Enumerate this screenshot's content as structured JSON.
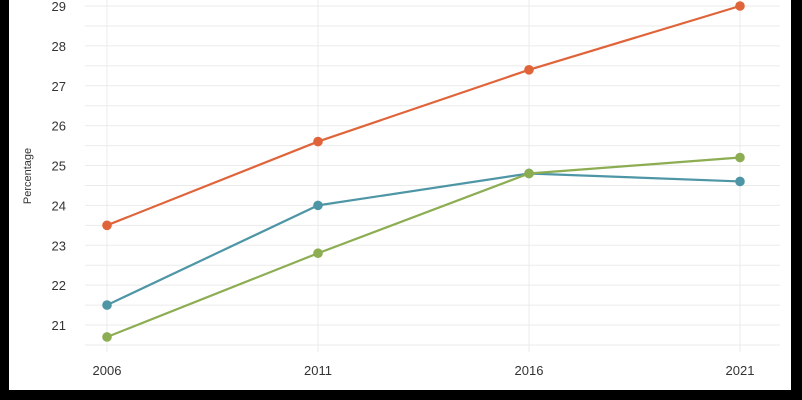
{
  "chart_data": {
    "type": "line",
    "title": "",
    "xlabel": "",
    "ylabel": "Percentage",
    "x": [
      "2006",
      "2011",
      "2016",
      "2021"
    ],
    "ylim": [
      20.5,
      29
    ],
    "yticks": [
      21,
      22,
      23,
      24,
      25,
      26,
      27,
      28,
      29
    ],
    "grid": true,
    "legend": "none",
    "series": [
      {
        "color": "#e0643a",
        "values": [
          23.5,
          25.6,
          27.4,
          29.0
        ]
      },
      {
        "color": "#4e96a6",
        "values": [
          21.5,
          24.0,
          24.8,
          24.6
        ]
      },
      {
        "color": "#8cad52",
        "values": [
          20.7,
          22.8,
          24.8,
          25.2
        ]
      }
    ]
  }
}
